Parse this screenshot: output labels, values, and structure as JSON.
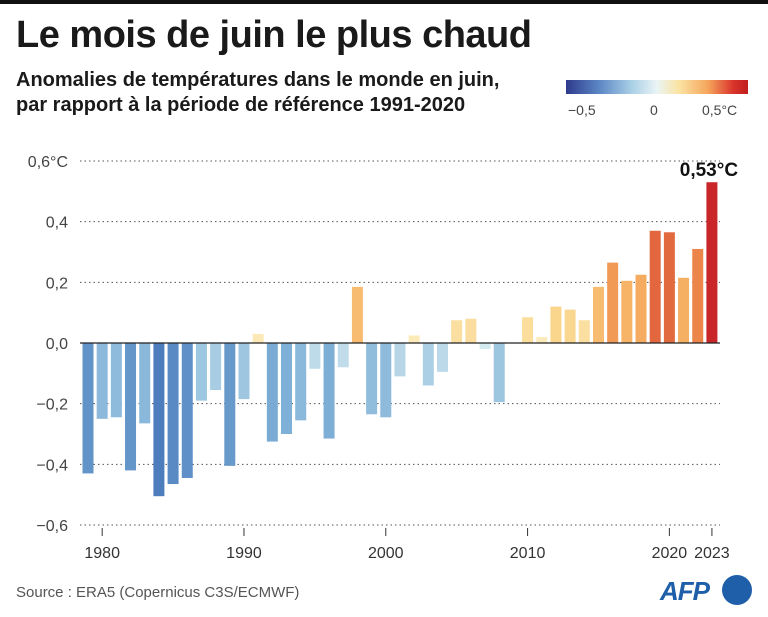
{
  "header": {
    "title": "Le mois de juin le plus chaud",
    "subtitle_line1": "Anomalies de températures dans le monde en juin,",
    "subtitle_line2": "par rapport à la période de référence 1991-2020"
  },
  "color_scale": {
    "labels": [
      "−0,5",
      "0",
      "0,5°C"
    ],
    "colors": [
      "#2e3a8c",
      "#eaf4f5",
      "#c01f1f"
    ]
  },
  "chart_data": {
    "type": "bar",
    "x": [
      1979,
      1980,
      1981,
      1982,
      1983,
      1984,
      1985,
      1986,
      1987,
      1988,
      1989,
      1990,
      1991,
      1992,
      1993,
      1994,
      1995,
      1996,
      1997,
      1998,
      1999,
      2000,
      2001,
      2002,
      2003,
      2004,
      2005,
      2006,
      2007,
      2008,
      2009,
      2010,
      2011,
      2012,
      2013,
      2014,
      2015,
      2016,
      2017,
      2018,
      2019,
      2020,
      2021,
      2022,
      2023
    ],
    "values": [
      -0.43,
      -0.25,
      -0.245,
      -0.42,
      -0.265,
      -0.505,
      -0.465,
      -0.445,
      -0.19,
      -0.155,
      -0.405,
      -0.185,
      0.03,
      -0.325,
      -0.3,
      -0.255,
      -0.085,
      -0.315,
      -0.08,
      0.185,
      -0.235,
      -0.245,
      -0.11,
      0.025,
      -0.14,
      -0.095,
      0.075,
      0.08,
      -0.02,
      -0.195,
      0.0,
      0.085,
      0.02,
      0.12,
      0.11,
      0.075,
      0.185,
      0.265,
      0.205,
      0.225,
      0.37,
      0.365,
      0.215,
      0.31,
      0.53
    ],
    "xticks": [
      "1980",
      "1990",
      "2000",
      "2010",
      "2020",
      "2023"
    ],
    "yticks": [
      "0,6°C",
      "0,4",
      "0,2",
      "0,0",
      "−0,2",
      "−0,4",
      "−0,6"
    ],
    "ylim": [
      -0.6,
      0.6
    ],
    "xlabel": "",
    "ylabel": "",
    "annotation": "0,53°C",
    "grid": true
  },
  "footer": {
    "source": "Source : ERA5 (Copernicus C3S/ECMWF)",
    "logo": "AFP"
  }
}
